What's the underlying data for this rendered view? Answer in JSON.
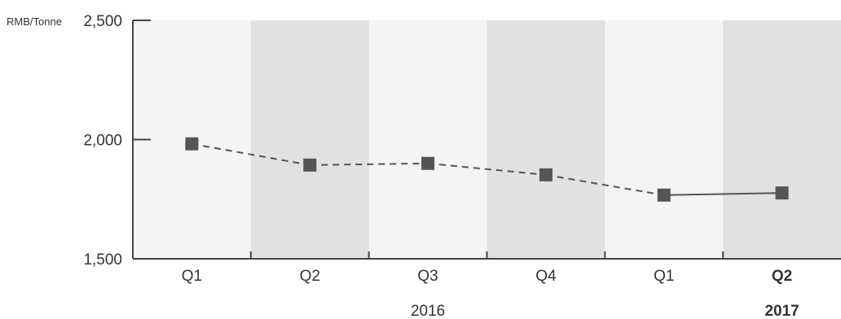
{
  "chart_data": {
    "type": "line",
    "ylabel": "RMB/Tonne",
    "ylim": [
      1500,
      2500
    ],
    "yticks": [
      {
        "value": 1500,
        "label": "1,500"
      },
      {
        "value": 2000,
        "label": "2,000"
      },
      {
        "value": 2500,
        "label": "2,500"
      }
    ],
    "categories": [
      "Q1",
      "Q2",
      "Q3",
      "Q4",
      "Q1",
      "Q2"
    ],
    "bold_categories": [
      5
    ],
    "year_groups": [
      {
        "label": "2016",
        "start": 0,
        "end": 4,
        "bold": false
      },
      {
        "label": "2017",
        "start": 5,
        "end": 5,
        "bold": true
      }
    ],
    "series": [
      {
        "values": [
          1982,
          1893,
          1900,
          1852,
          1767,
          1776
        ],
        "solid_from_index": 4
      }
    ],
    "band_colors": [
      "#f4f4f4",
      "#e1e1e2"
    ],
    "line_color": "#555555",
    "marker_color": "#555555",
    "axis_color": "#444444",
    "grid": false
  }
}
